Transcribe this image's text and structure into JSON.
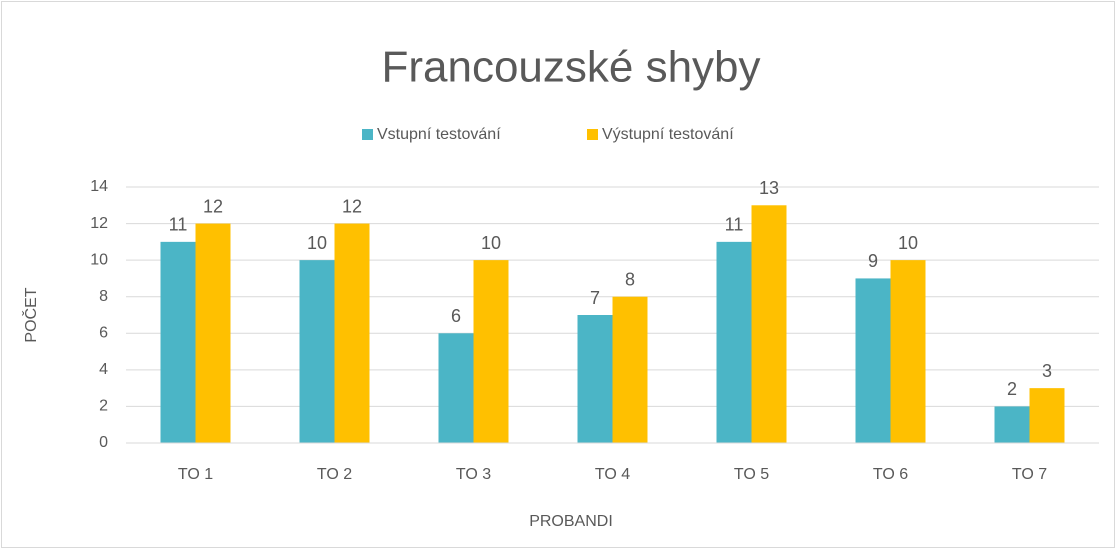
{
  "chart_data": {
    "type": "bar",
    "title": "Francouzské shyby",
    "x_label": "PROBANDI",
    "y_label": "POČET",
    "categories": [
      "TO 1",
      "TO 2",
      "TO 3",
      "TO 4",
      "TO 5",
      "TO 6",
      "TO 7"
    ],
    "series": [
      {
        "name": "Vstupní testování",
        "color": "#4bb5c6",
        "values": [
          11,
          10,
          6,
          7,
          11,
          9,
          2
        ]
      },
      {
        "name": "Výstupní testování",
        "color": "#ffc000",
        "values": [
          12,
          12,
          10,
          8,
          13,
          10,
          3
        ]
      }
    ],
    "ylim": [
      0,
      14
    ],
    "yticks": [
      0,
      2,
      4,
      6,
      8,
      10,
      12,
      14
    ],
    "grid": true,
    "legend": "top"
  }
}
